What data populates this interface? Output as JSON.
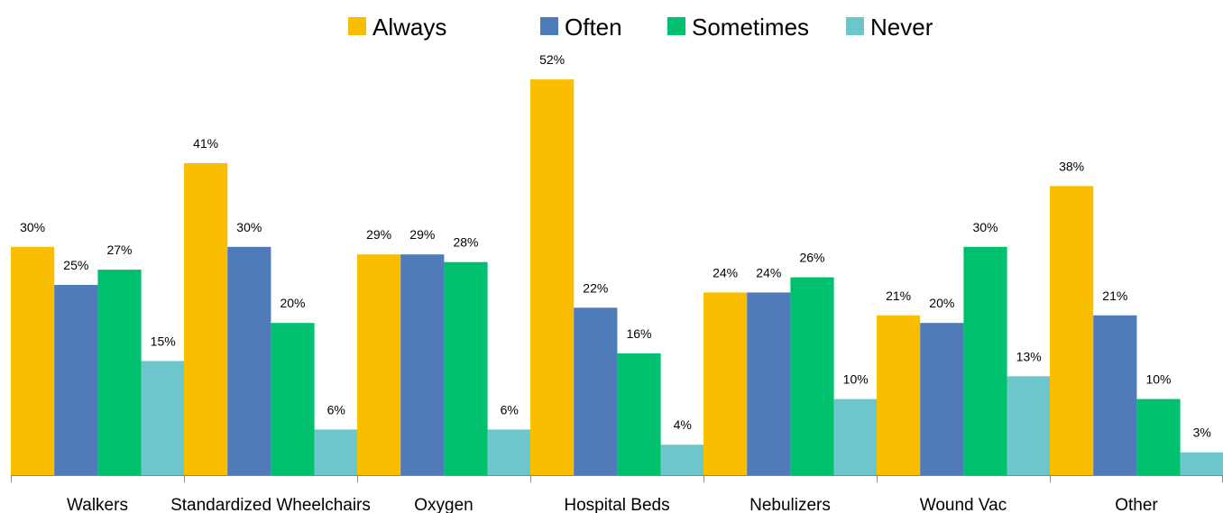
{
  "chart_data": {
    "type": "bar",
    "categories": [
      "Walkers",
      "Standardized Wheelchairs",
      "Oxygen",
      "Hospital Beds",
      "Nebulizers",
      "Wound Vac",
      "Other"
    ],
    "series": [
      {
        "name": "Always",
        "color": "#F9BE00",
        "values": [
          30,
          41,
          29,
          52,
          24,
          21,
          38
        ],
        "labels": [
          "30%",
          "41%",
          "29%",
          "52%",
          "24%",
          "21%",
          "38%"
        ]
      },
      {
        "name": "Often",
        "color": "#4F7BB9",
        "values": [
          25,
          30,
          29,
          22,
          24,
          20,
          21
        ],
        "labels": [
          "25%",
          "30%",
          "29%",
          "22%",
          "24%",
          "20%",
          "21%"
        ]
      },
      {
        "name": "Sometimes",
        "color": "#00BF6F",
        "values": [
          27,
          20,
          28,
          16,
          26,
          30,
          10
        ],
        "labels": [
          "27%",
          "20%",
          "28%",
          "16%",
          "26%",
          "30%",
          "10%"
        ]
      },
      {
        "name": "Never",
        "color": "#6CC7CC",
        "values": [
          15,
          6,
          6,
          4,
          10,
          13,
          3
        ],
        "labels": [
          "15%",
          "6%",
          "6%",
          "4%",
          "10%",
          "13%",
          "3%"
        ]
      }
    ],
    "ylim": [
      0,
      60
    ],
    "grid": false,
    "legend_position": "top-center"
  }
}
